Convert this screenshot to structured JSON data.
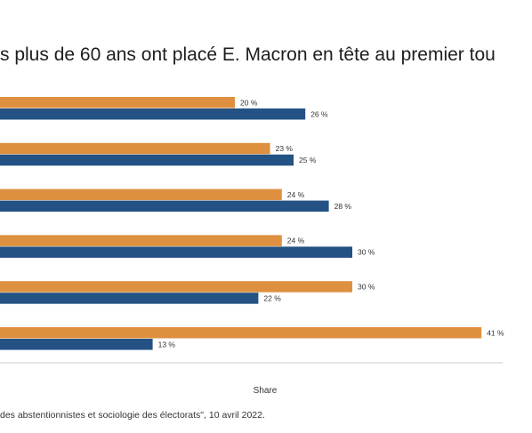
{
  "title": "s plus de 60 ans ont placé E. Macron en tête au premier tou",
  "source": " des abstentionnistes et sociologie des électorats\", 10 avril 2022.",
  "colors": {
    "orange": "#DE9041",
    "blue": "#245284",
    "axis": "#cccccc",
    "text": "#333333"
  },
  "chart_data": {
    "type": "bar",
    "orientation": "horizontal",
    "xlabel": "Share",
    "value_suffix": " %",
    "categories": [
      "",
      "",
      "",
      "",
      "",
      ""
    ],
    "series": [
      {
        "values": [
          20,
          23,
          24,
          24,
          30,
          41
        ]
      },
      {
        "values": [
          26,
          25,
          28,
          30,
          22,
          13
        ]
      }
    ],
    "xlim": [
      0,
      45
    ],
    "grid": false
  }
}
